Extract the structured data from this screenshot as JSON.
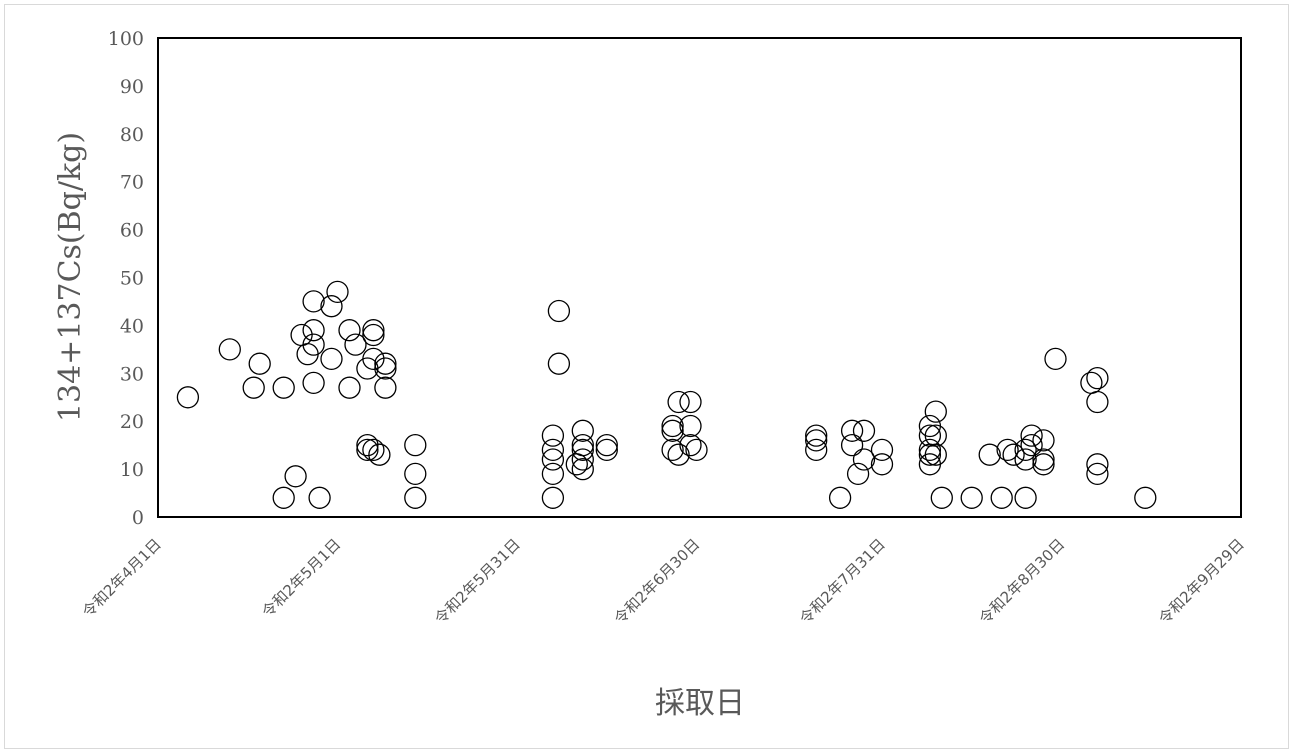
{
  "chart_data": {
    "type": "scatter",
    "title": "",
    "xlabel": "採取日",
    "ylabel": "134+137Cs(Bq/kg)",
    "x_axis": {
      "type": "date",
      "min": "2020-04-01",
      "max": "2020-09-29",
      "ticks": [
        {
          "date": "2020-04-01",
          "label": "令和2年4月1日"
        },
        {
          "date": "2020-05-01",
          "label": "令和2年5月1日"
        },
        {
          "date": "2020-05-31",
          "label": "令和2年5月31日"
        },
        {
          "date": "2020-06-30",
          "label": "令和2年6月30日"
        },
        {
          "date": "2020-07-31",
          "label": "令和2年7月31日"
        },
        {
          "date": "2020-08-30",
          "label": "令和2年8月30日"
        },
        {
          "date": "2020-09-29",
          "label": "令和2年9月29日"
        }
      ]
    },
    "y_axis": {
      "min": 0,
      "max": 100,
      "ticks": [
        0,
        10,
        20,
        30,
        40,
        50,
        60,
        70,
        80,
        90,
        100
      ]
    },
    "grid": false,
    "legend": "none",
    "marker": {
      "shape": "open-circle",
      "stroke": "#000000"
    },
    "series": [
      {
        "points": [
          [
            "2020-04-06",
            25
          ],
          [
            "2020-04-13",
            35
          ],
          [
            "2020-04-17",
            27
          ],
          [
            "2020-04-18",
            32
          ],
          [
            "2020-04-22",
            27
          ],
          [
            "2020-04-22",
            4
          ],
          [
            "2020-04-24",
            8.5
          ],
          [
            "2020-04-25",
            38
          ],
          [
            "2020-04-26",
            34
          ],
          [
            "2020-04-27",
            45
          ],
          [
            "2020-04-27",
            39
          ],
          [
            "2020-04-27",
            36
          ],
          [
            "2020-04-27",
            28
          ],
          [
            "2020-04-28",
            4
          ],
          [
            "2020-04-30",
            44
          ],
          [
            "2020-04-30",
            33
          ],
          [
            "2020-05-01",
            47
          ],
          [
            "2020-05-03",
            39
          ],
          [
            "2020-05-03",
            27
          ],
          [
            "2020-05-04",
            36
          ],
          [
            "2020-05-06",
            31
          ],
          [
            "2020-05-06",
            15
          ],
          [
            "2020-05-06",
            14
          ],
          [
            "2020-05-07",
            39
          ],
          [
            "2020-05-07",
            38
          ],
          [
            "2020-05-07",
            33
          ],
          [
            "2020-05-07",
            14
          ],
          [
            "2020-05-08",
            13
          ],
          [
            "2020-05-09",
            32
          ],
          [
            "2020-05-09",
            31
          ],
          [
            "2020-05-09",
            27
          ],
          [
            "2020-05-14",
            15
          ],
          [
            "2020-05-14",
            9
          ],
          [
            "2020-05-14",
            4
          ],
          [
            "2020-06-06",
            17
          ],
          [
            "2020-06-06",
            14
          ],
          [
            "2020-06-06",
            12
          ],
          [
            "2020-06-06",
            9
          ],
          [
            "2020-06-06",
            4
          ],
          [
            "2020-06-07",
            43
          ],
          [
            "2020-06-07",
            32
          ],
          [
            "2020-06-10",
            11
          ],
          [
            "2020-06-11",
            18
          ],
          [
            "2020-06-11",
            15
          ],
          [
            "2020-06-11",
            14
          ],
          [
            "2020-06-11",
            12
          ],
          [
            "2020-06-11",
            10
          ],
          [
            "2020-06-15",
            15
          ],
          [
            "2020-06-15",
            14
          ],
          [
            "2020-06-26",
            19
          ],
          [
            "2020-06-26",
            18
          ],
          [
            "2020-06-26",
            14
          ],
          [
            "2020-06-27",
            24
          ],
          [
            "2020-06-27",
            13
          ],
          [
            "2020-06-29",
            24
          ],
          [
            "2020-06-29",
            19
          ],
          [
            "2020-06-29",
            15
          ],
          [
            "2020-06-30",
            14
          ],
          [
            "2020-07-20",
            17
          ],
          [
            "2020-07-20",
            16
          ],
          [
            "2020-07-20",
            14
          ],
          [
            "2020-07-24",
            4
          ],
          [
            "2020-07-26",
            18
          ],
          [
            "2020-07-26",
            15
          ],
          [
            "2020-07-27",
            9
          ],
          [
            "2020-07-28",
            18
          ],
          [
            "2020-07-28",
            12
          ],
          [
            "2020-07-31",
            14
          ],
          [
            "2020-07-31",
            11
          ],
          [
            "2020-08-08",
            19
          ],
          [
            "2020-08-08",
            17
          ],
          [
            "2020-08-08",
            14
          ],
          [
            "2020-08-08",
            13
          ],
          [
            "2020-08-08",
            11
          ],
          [
            "2020-08-09",
            22
          ],
          [
            "2020-08-09",
            17
          ],
          [
            "2020-08-09",
            13
          ],
          [
            "2020-08-10",
            4
          ],
          [
            "2020-08-15",
            4
          ],
          [
            "2020-08-18",
            13
          ],
          [
            "2020-08-20",
            4
          ],
          [
            "2020-08-21",
            14
          ],
          [
            "2020-08-22",
            13
          ],
          [
            "2020-08-24",
            4
          ],
          [
            "2020-08-24",
            14
          ],
          [
            "2020-08-24",
            12
          ],
          [
            "2020-08-25",
            17
          ],
          [
            "2020-08-25",
            15
          ],
          [
            "2020-08-27",
            16
          ],
          [
            "2020-08-27",
            12
          ],
          [
            "2020-08-27",
            11
          ],
          [
            "2020-08-29",
            33
          ],
          [
            "2020-09-04",
            28
          ],
          [
            "2020-09-05",
            29
          ],
          [
            "2020-09-05",
            24
          ],
          [
            "2020-09-05",
            11
          ],
          [
            "2020-09-05",
            9
          ],
          [
            "2020-09-13",
            4
          ]
        ]
      }
    ]
  }
}
